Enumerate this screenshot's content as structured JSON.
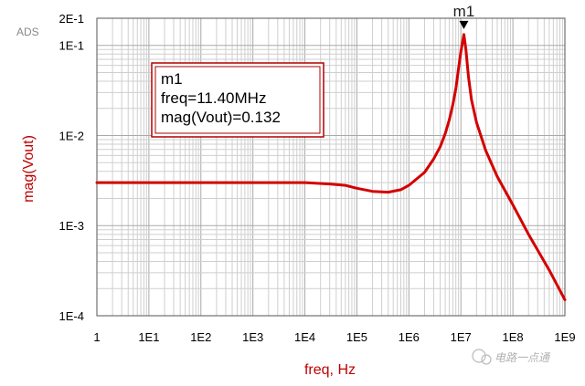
{
  "app": {
    "corner_label": "ADS",
    "watermark": "电路一点通"
  },
  "colors": {
    "trace": "#d40000",
    "axis_label": "#c00000",
    "grid_major": "#a9a9a9",
    "grid_minor": "#cfcfcf",
    "marker_box": "#b00000"
  },
  "marker": {
    "name": "m1",
    "lines": [
      "m1",
      "freq=11.40MHz",
      "mag(Vout)=0.132"
    ],
    "x": 11400000,
    "y": 0.132
  },
  "chart_data": {
    "type": "line",
    "title": "",
    "xlabel": "freq, Hz",
    "ylabel": "mag(Vout)",
    "x_scale": "log",
    "y_scale": "log",
    "xlim": [
      1,
      1000000000
    ],
    "ylim": [
      0.0001,
      0.2
    ],
    "grid": true,
    "x_ticks": [
      1,
      10,
      100,
      1000,
      10000,
      100000,
      1000000,
      10000000,
      100000000,
      1000000000
    ],
    "x_tick_labels": [
      "1",
      "1E1",
      "1E2",
      "1E3",
      "1E4",
      "1E5",
      "1E6",
      "1E7",
      "1E8",
      "1E9"
    ],
    "y_ticks": [
      0.0001,
      0.001,
      0.01,
      0.1,
      0.2
    ],
    "y_tick_labels": [
      "1E-4",
      "1E-3",
      "1E-2",
      "1E-1",
      "2E-1"
    ],
    "series": [
      {
        "x": [
          1,
          10,
          100,
          1000,
          10000,
          30000,
          60000,
          100000,
          200000,
          400000,
          700000,
          1000000,
          2000000,
          3000000,
          4000000,
          5000000,
          6000000,
          7000000,
          8000000,
          9000000,
          10000000,
          11400000,
          12500000,
          14000000,
          16000000,
          20000000,
          30000000,
          50000000,
          100000000,
          200000000,
          500000000,
          1000000000
        ],
        "y": [
          0.003,
          0.003,
          0.003,
          0.003,
          0.003,
          0.0029,
          0.0028,
          0.0026,
          0.0024,
          0.00235,
          0.0025,
          0.0028,
          0.0039,
          0.0055,
          0.0075,
          0.0105,
          0.015,
          0.022,
          0.033,
          0.055,
          0.085,
          0.132,
          0.09,
          0.045,
          0.025,
          0.014,
          0.0068,
          0.0035,
          0.0017,
          0.0008,
          0.00032,
          0.00015
        ]
      }
    ]
  }
}
